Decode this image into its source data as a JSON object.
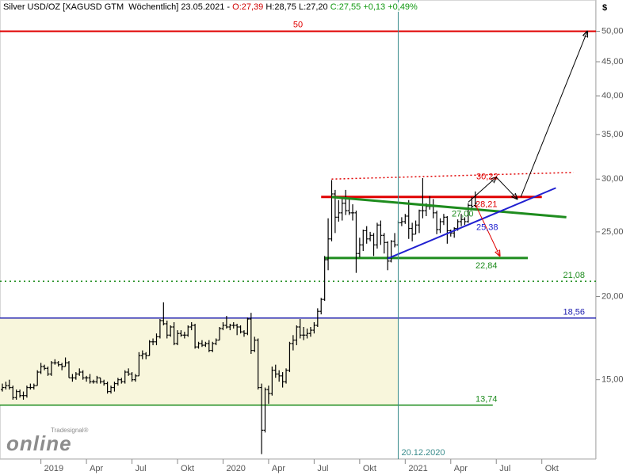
{
  "header": {
    "instrument": "Silver USD/OZ [XAGUSD GTM  Wöchentlich] 23.05.2021 - ",
    "open": "O:27,39",
    "high": "H:28,75",
    "low": "L:27,20",
    "close": "C:27,55",
    "change": "+0,13",
    "change_pct": "+0,49%"
  },
  "logo": {
    "small": "Tradesignal®",
    "big": "online"
  },
  "chart_data": {
    "type": "candlestick",
    "y_unit": "$",
    "log_scale": true,
    "ylim": [
      11.4,
      55.7
    ],
    "yticks": [
      {
        "value": 15,
        "label": "15,00"
      },
      {
        "value": 20,
        "label": "20,00"
      },
      {
        "value": 25,
        "label": "25,00"
      },
      {
        "value": 30,
        "label": "30,00"
      },
      {
        "value": 35,
        "label": "35,00"
      },
      {
        "value": 40,
        "label": "40,00"
      },
      {
        "value": 45,
        "label": "45,00"
      },
      {
        "value": 50,
        "label": "50,00"
      }
    ],
    "candle_color": "#000000",
    "categories": [
      null,
      null,
      null,
      null,
      null,
      null,
      null,
      null,
      null,
      null,
      null,
      "2019",
      null,
      null,
      null,
      null,
      null,
      null,
      null,
      null,
      null,
      null,
      null,
      null,
      "Apr",
      null,
      null,
      null,
      null,
      null,
      null,
      null,
      null,
      null,
      null,
      null,
      null,
      "Jul",
      null,
      null,
      null,
      null,
      null,
      null,
      null,
      null,
      null,
      null,
      null,
      null,
      "Okt",
      null,
      null,
      null,
      null,
      null,
      null,
      null,
      null,
      null,
      null,
      null,
      null,
      "2020",
      null,
      null,
      null,
      null,
      null,
      null,
      null,
      null,
      null,
      null,
      null,
      null,
      "Apr",
      null,
      null,
      null,
      null,
      null,
      null,
      null,
      null,
      null,
      null,
      null,
      null,
      "Jul",
      null,
      null,
      null,
      null,
      null,
      null,
      null,
      null,
      null,
      null,
      null,
      null,
      "Okt",
      null,
      null,
      null,
      null,
      null,
      null,
      null,
      null,
      null,
      null,
      null,
      null,
      "2021",
      null,
      null,
      null,
      null,
      null,
      null,
      null,
      null,
      null,
      null,
      null,
      null,
      "Apr",
      null,
      null,
      null,
      null,
      null,
      null,
      null,
      null,
      null,
      null,
      null,
      null,
      "Jul",
      null,
      null,
      null,
      null,
      null,
      null,
      null,
      null,
      null,
      null,
      null,
      null,
      "Okt",
      null,
      null,
      null,
      null,
      null,
      null,
      null,
      null,
      null,
      null,
      null,
      null,
      null,
      null,
      null
    ],
    "ohlc": [
      [
        14.5,
        14.8,
        14.4,
        14.6
      ],
      [
        14.6,
        14.9,
        14.5,
        14.7
      ],
      [
        14.7,
        15.0,
        14.5,
        14.6
      ],
      [
        14.6,
        14.7,
        14.0,
        14.1
      ],
      [
        14.1,
        14.5,
        14.0,
        14.4
      ],
      [
        14.4,
        14.5,
        14.1,
        14.2
      ],
      [
        14.2,
        14.4,
        14.0,
        14.2
      ],
      [
        14.2,
        14.7,
        14.1,
        14.6
      ],
      [
        14.6,
        14.8,
        14.5,
        14.6
      ],
      [
        14.6,
        14.8,
        14.5,
        14.7
      ],
      [
        14.7,
        15.5,
        14.7,
        15.4
      ],
      [
        15.4,
        15.9,
        15.3,
        15.7
      ],
      [
        15.7,
        15.8,
        15.5,
        15.6
      ],
      [
        15.6,
        15.7,
        15.2,
        15.3
      ],
      [
        15.3,
        16.0,
        15.2,
        15.9
      ],
      [
        15.9,
        16.1,
        15.8,
        15.9
      ],
      [
        15.9,
        16.0,
        15.7,
        15.8
      ],
      [
        15.8,
        15.9,
        15.5,
        15.7
      ],
      [
        15.7,
        16.2,
        15.7,
        15.9
      ],
      [
        15.9,
        16.0,
        15.1,
        15.1
      ],
      [
        15.1,
        15.3,
        14.9,
        15.1
      ],
      [
        15.1,
        15.4,
        15.0,
        15.3
      ],
      [
        15.3,
        15.6,
        15.2,
        15.4
      ],
      [
        15.4,
        15.5,
        15.0,
        15.1
      ],
      [
        15.1,
        15.2,
        14.9,
        15.1
      ],
      [
        15.1,
        15.3,
        14.8,
        14.9
      ],
      [
        14.9,
        15.0,
        14.8,
        14.9
      ],
      [
        14.9,
        15.2,
        14.8,
        15.1
      ],
      [
        15.1,
        15.1,
        14.8,
        14.9
      ],
      [
        14.9,
        15.0,
        14.7,
        14.8
      ],
      [
        14.8,
        14.9,
        14.3,
        14.4
      ],
      [
        14.4,
        14.7,
        14.3,
        14.6
      ],
      [
        14.6,
        14.9,
        14.4,
        14.8
      ],
      [
        14.8,
        15.1,
        14.7,
        15.0
      ],
      [
        15.0,
        15.1,
        14.8,
        14.9
      ],
      [
        14.9,
        15.5,
        14.8,
        15.4
      ],
      [
        15.4,
        15.6,
        15.2,
        15.3
      ],
      [
        15.3,
        15.4,
        14.9,
        15.0
      ],
      [
        15.0,
        15.3,
        14.9,
        15.2
      ],
      [
        15.2,
        16.5,
        15.2,
        16.3
      ],
      [
        16.3,
        16.6,
        16.1,
        16.4
      ],
      [
        16.4,
        16.5,
        16.1,
        16.3
      ],
      [
        16.3,
        17.2,
        16.3,
        17.1
      ],
      [
        17.1,
        17.3,
        16.9,
        17.1
      ],
      [
        17.1,
        17.6,
        16.9,
        17.4
      ],
      [
        17.4,
        18.5,
        17.3,
        18.4
      ],
      [
        18.4,
        19.6,
        18.1,
        18.2
      ],
      [
        18.2,
        18.4,
        17.3,
        17.5
      ],
      [
        17.5,
        18.1,
        17.4,
        18.0
      ],
      [
        18.0,
        18.3,
        16.9,
        17.0
      ],
      [
        17.0,
        17.8,
        16.9,
        17.6
      ],
      [
        17.6,
        17.8,
        17.4,
        17.5
      ],
      [
        17.5,
        17.7,
        17.3,
        17.5
      ],
      [
        17.5,
        18.1,
        17.4,
        18.0
      ],
      [
        18.0,
        18.3,
        17.8,
        18.1
      ],
      [
        18.1,
        18.2,
        16.7,
        16.8
      ],
      [
        16.8,
        17.1,
        16.7,
        17.0
      ],
      [
        17.0,
        17.2,
        16.8,
        16.9
      ],
      [
        16.9,
        17.1,
        16.8,
        17.0
      ],
      [
        17.0,
        17.2,
        16.5,
        16.6
      ],
      [
        16.6,
        17.1,
        16.5,
        17.0
      ],
      [
        17.0,
        17.3,
        16.9,
        17.2
      ],
      [
        17.2,
        18.0,
        17.2,
        17.9
      ],
      [
        17.9,
        18.3,
        17.8,
        18.1
      ],
      [
        18.1,
        18.7,
        17.9,
        18.0
      ],
      [
        18.0,
        18.2,
        17.8,
        18.1
      ],
      [
        18.1,
        18.3,
        17.9,
        18.1
      ],
      [
        18.1,
        18.2,
        17.5,
        18.0
      ],
      [
        18.0,
        18.1,
        17.6,
        17.7
      ],
      [
        17.7,
        17.8,
        17.4,
        17.6
      ],
      [
        17.6,
        18.6,
        17.5,
        18.5
      ],
      [
        18.5,
        18.9,
        16.4,
        16.6
      ],
      [
        16.6,
        17.4,
        16.5,
        17.2
      ],
      [
        17.2,
        17.3,
        14.5,
        14.6
      ],
      [
        14.6,
        14.8,
        11.6,
        12.6
      ],
      [
        12.6,
        14.6,
        12.5,
        14.5
      ],
      [
        14.5,
        14.7,
        13.8,
        14.3
      ],
      [
        14.3,
        15.7,
        14.2,
        15.5
      ],
      [
        15.5,
        15.8,
        15.1,
        15.3
      ],
      [
        15.3,
        15.5,
        14.9,
        15.2
      ],
      [
        15.2,
        15.4,
        14.6,
        14.9
      ],
      [
        14.9,
        15.6,
        14.8,
        15.5
      ],
      [
        15.5,
        17.1,
        15.4,
        17.0
      ],
      [
        17.0,
        17.5,
        16.6,
        17.2
      ],
      [
        17.2,
        18.1,
        16.9,
        18.0
      ],
      [
        18.0,
        18.5,
        17.3,
        17.5
      ],
      [
        17.5,
        18.0,
        17.2,
        17.5
      ],
      [
        17.5,
        17.9,
        17.3,
        17.6
      ],
      [
        17.6,
        18.0,
        17.4,
        17.8
      ],
      [
        17.8,
        18.3,
        17.6,
        18.1
      ],
      [
        18.1,
        19.2,
        18.0,
        19.0
      ],
      [
        19.0,
        19.9,
        18.8,
        19.8
      ],
      [
        19.8,
        23.0,
        19.7,
        22.7
      ],
      [
        22.7,
        26.2,
        21.9,
        24.4
      ],
      [
        24.4,
        29.9,
        24.2,
        28.5
      ],
      [
        28.5,
        28.9,
        24.9,
        26.3
      ],
      [
        26.3,
        27.9,
        25.9,
        26.7
      ],
      [
        26.7,
        28.0,
        26.0,
        27.6
      ],
      [
        27.6,
        28.9,
        26.5,
        26.9
      ],
      [
        26.9,
        28.0,
        26.5,
        26.7
      ],
      [
        26.7,
        27.5,
        26.0,
        26.7
      ],
      [
        26.7,
        26.9,
        21.7,
        23.2
      ],
      [
        23.2,
        24.5,
        22.9,
        23.9
      ],
      [
        23.9,
        25.2,
        23.4,
        25.1
      ],
      [
        25.1,
        25.5,
        24.0,
        24.4
      ],
      [
        24.4,
        25.0,
        24.2,
        24.7
      ],
      [
        24.7,
        24.9,
        23.0,
        23.9
      ],
      [
        23.9,
        25.8,
        23.6,
        25.6
      ],
      [
        25.6,
        26.0,
        23.9,
        24.7
      ],
      [
        24.7,
        24.9,
        23.2,
        24.1
      ],
      [
        24.1,
        24.2,
        21.9,
        22.6
      ],
      [
        22.6,
        24.3,
        22.5,
        24.2
      ],
      [
        24.2,
        24.9,
        23.7,
        23.9
      ],
      [
        23.9,
        26.0,
        23.8,
        25.8
      ],
      [
        25.8,
        26.3,
        25.5,
        25.9
      ],
      [
        25.9,
        26.6,
        25.7,
        26.4
      ],
      [
        26.4,
        27.9,
        24.4,
        25.3
      ],
      [
        25.3,
        25.8,
        24.2,
        24.8
      ],
      [
        24.8,
        26.0,
        24.8,
        25.6
      ],
      [
        25.6,
        27.0,
        24.9,
        26.9
      ],
      [
        26.9,
        30.1,
        26.2,
        26.9
      ],
      [
        26.9,
        27.6,
        26.4,
        27.3
      ],
      [
        27.3,
        28.3,
        27.0,
        27.3
      ],
      [
        27.3,
        28.0,
        26.2,
        26.7
      ],
      [
        26.7,
        26.9,
        24.8,
        25.2
      ],
      [
        25.2,
        26.2,
        24.9,
        25.9
      ],
      [
        25.9,
        26.6,
        25.6,
        26.3
      ],
      [
        26.3,
        26.4,
        24.0,
        25.1
      ],
      [
        25.1,
        25.2,
        24.6,
        24.9
      ],
      [
        24.9,
        25.4,
        24.5,
        25.3
      ],
      [
        25.3,
        26.1,
        25.1,
        25.9
      ],
      [
        25.9,
        26.6,
        25.5,
        26.1
      ],
      [
        26.1,
        26.3,
        25.6,
        25.9
      ],
      [
        25.9,
        27.6,
        25.8,
        27.4
      ],
      [
        27.4,
        28.2,
        27.1,
        27.3
      ],
      [
        27.39,
        28.75,
        27.2,
        27.55
      ],
      null,
      null,
      null,
      null,
      null,
      null,
      null,
      null,
      null,
      null,
      null,
      null,
      null,
      null,
      null,
      null,
      null,
      null,
      null,
      null,
      null,
      null,
      null,
      null,
      null,
      null,
      null,
      null,
      null,
      null,
      null,
      null,
      null,
      null
    ],
    "zone": {
      "low": 13.74,
      "high": 18.56,
      "color": "#f8f6dc"
    },
    "marker": {
      "index": 113,
      "label": "20.12.2020",
      "color": "#3a8c8c"
    },
    "levels": [
      {
        "value": 50,
        "label": "50",
        "color": "#e00000",
        "width": 2
      },
      {
        "value": 28.21,
        "label": "28,21",
        "color": "#e00000",
        "width": 3,
        "from": 91,
        "to": 154
      },
      {
        "value": 22.84,
        "label": "22,84",
        "color": "#1e8c1e",
        "width": 3,
        "from": 92,
        "to": 150
      },
      {
        "value": 21.08,
        "label": "21,08",
        "color": "#1e8c1e",
        "width": 1.5,
        "dashed": true
      },
      {
        "value": 18.56,
        "label": "18,56",
        "color": "#2020b0",
        "width": 1.5
      },
      {
        "value": 13.74,
        "label": "13,74",
        "color": "#1e8c1e",
        "width": 1.5,
        "to": 140
      }
    ],
    "trendlines": [
      {
        "from": [
          94,
          30.0
        ],
        "to": [
          163,
          30.7
        ],
        "color": "#e00000",
        "width": 1.5,
        "dashed": true,
        "value_label": {
          "value": 30.22,
          "label": "30,22"
        }
      },
      {
        "from": [
          94,
          28.2
        ],
        "to": [
          161,
          26.3
        ],
        "color": "#1e8c1e",
        "width": 3,
        "value_label": {
          "value": 27.0,
          "label": "27,00"
        }
      },
      {
        "from": [
          110,
          22.8
        ],
        "to": [
          158,
          29.1
        ],
        "color": "#2020d0",
        "width": 2,
        "value_label": {
          "value": 25.38,
          "label": "25,38"
        }
      }
    ],
    "arrows": [
      {
        "from": [
          133,
          27.7
        ],
        "to": [
          141,
          30.2
        ],
        "color": "#000000"
      },
      {
        "from": [
          141,
          30.2
        ],
        "to": [
          147,
          28.0
        ],
        "color": "#000000"
      },
      {
        "from": [
          148,
          28.2
        ],
        "to": [
          167,
          50
        ],
        "color": "#000000"
      },
      {
        "from": [
          135,
          27.5
        ],
        "to": [
          142,
          23.0
        ],
        "color": "#e00000"
      }
    ]
  }
}
